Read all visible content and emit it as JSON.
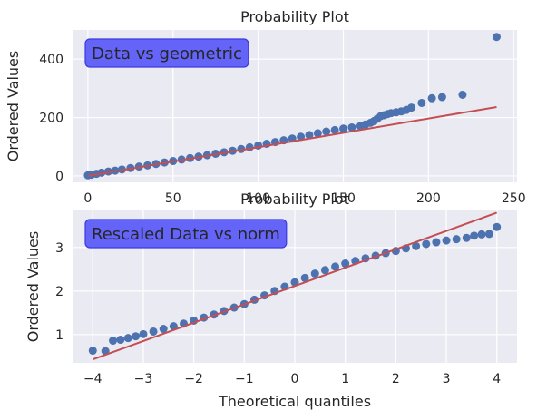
{
  "colors": {
    "plot_bg": "#eaeaf2",
    "grid": "#ffffff",
    "points": "#4c72b0",
    "fit_line": "#c44e52",
    "annotation_fill": "#6464f8",
    "annotation_edge": "#3a3ae0",
    "text": "#262626"
  },
  "chart_data": [
    {
      "type": "scatter",
      "title": "Probability Plot",
      "xlabel": "",
      "ylabel": "Ordered Values",
      "annotation": "Data vs geometric",
      "xlim": [
        -9,
        252
      ],
      "ylim": [
        -22,
        500
      ],
      "xticks": [
        0,
        50,
        100,
        150,
        200,
        250
      ],
      "yticks": [
        0,
        200,
        400
      ],
      "grid": true,
      "fit_line": {
        "x": [
          0,
          240
        ],
        "y": [
          0,
          236
        ]
      },
      "series": [
        {
          "values_x": [
            0,
            2,
            5,
            8,
            12,
            16,
            20,
            25,
            30,
            35,
            40,
            45,
            50,
            55,
            60,
            65,
            70,
            75,
            80,
            85,
            90,
            95,
            100,
            105,
            110,
            115,
            120,
            125,
            130,
            135,
            140,
            145,
            150,
            155,
            160,
            163,
            166,
            168,
            170,
            172,
            174,
            176,
            178,
            181,
            184,
            187,
            190,
            196,
            202,
            208,
            220,
            240
          ],
          "values_y": [
            2,
            4,
            7,
            11,
            15,
            18,
            22,
            27,
            32,
            36,
            41,
            46,
            51,
            56,
            61,
            66,
            71,
            76,
            81,
            86,
            92,
            98,
            104,
            110,
            116,
            122,
            128,
            134,
            140,
            146,
            152,
            157,
            162,
            166,
            171,
            176,
            182,
            188,
            196,
            205,
            208,
            212,
            215,
            218,
            221,
            226,
            234,
            250,
            266,
            270,
            278,
            476
          ]
        }
      ]
    },
    {
      "type": "scatter",
      "title": "Probability Plot",
      "xlabel": "Theoretical quantiles",
      "ylabel": "Ordered Values",
      "annotation": "Rescaled Data vs norm",
      "xlim": [
        -4.4,
        4.4
      ],
      "ylim": [
        0.35,
        3.85
      ],
      "xticks": [
        -4,
        -3,
        -2,
        -1,
        0,
        1,
        2,
        3,
        4
      ],
      "yticks": [
        1,
        2,
        3
      ],
      "grid": true,
      "fit_line": {
        "x": [
          -4,
          4
        ],
        "y": [
          0.43,
          3.8
        ]
      },
      "series": [
        {
          "values_x": [
            -4.0,
            -3.75,
            -3.6,
            -3.45,
            -3.3,
            -3.15,
            -3.0,
            -2.8,
            -2.6,
            -2.4,
            -2.2,
            -2.0,
            -1.8,
            -1.6,
            -1.4,
            -1.2,
            -1.0,
            -0.8,
            -0.6,
            -0.4,
            -0.2,
            0.0,
            0.2,
            0.4,
            0.6,
            0.8,
            1.0,
            1.2,
            1.4,
            1.6,
            1.8,
            2.0,
            2.2,
            2.4,
            2.6,
            2.8,
            3.0,
            3.2,
            3.4,
            3.55,
            3.7,
            3.85,
            4.0
          ],
          "values_y": [
            0.63,
            0.62,
            0.86,
            0.88,
            0.92,
            0.96,
            1.01,
            1.07,
            1.13,
            1.19,
            1.25,
            1.32,
            1.39,
            1.46,
            1.54,
            1.62,
            1.7,
            1.8,
            1.9,
            2.0,
            2.1,
            2.2,
            2.3,
            2.4,
            2.48,
            2.56,
            2.63,
            2.69,
            2.75,
            2.81,
            2.87,
            2.92,
            2.98,
            3.03,
            3.08,
            3.12,
            3.16,
            3.19,
            3.22,
            3.27,
            3.3,
            3.31,
            3.47
          ]
        }
      ]
    }
  ]
}
